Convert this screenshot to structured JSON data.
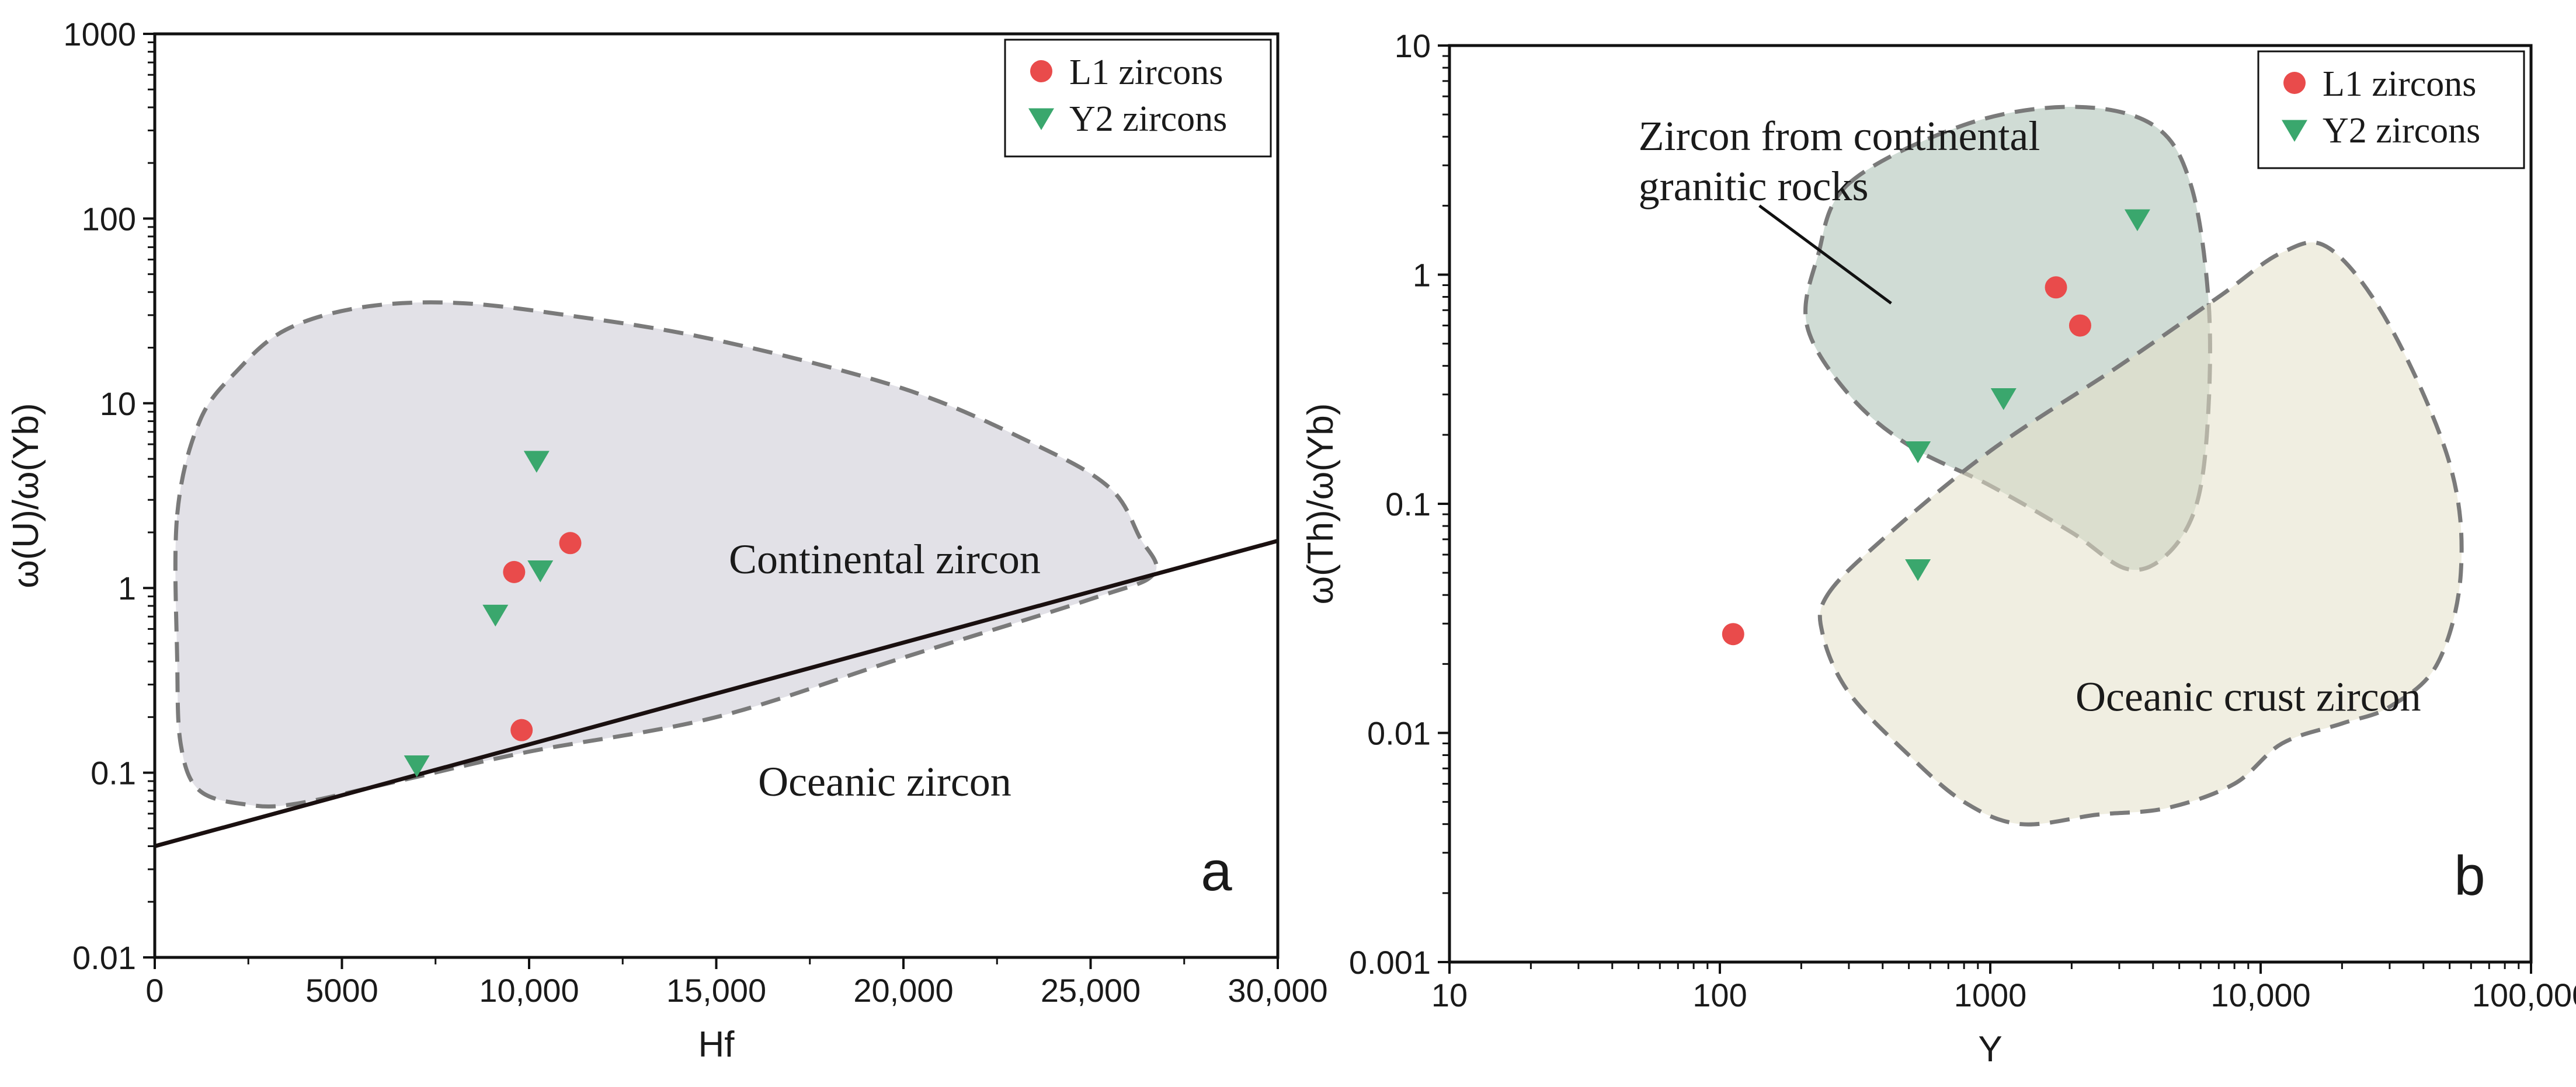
{
  "chart_data": [
    {
      "panel": "a",
      "type": "scatter",
      "panel_label": "a",
      "xlabel": "Hf",
      "ylabel": "ω(U)/ω(Yb)",
      "x_scale": "linear",
      "y_scale": "log",
      "xlim": [
        0,
        30000
      ],
      "ylim": [
        0.01,
        1000
      ],
      "x_ticks": [
        {
          "value": 0,
          "label": "0"
        },
        {
          "value": 5000,
          "label": "5000"
        },
        {
          "value": 10000,
          "label": "10,000"
        },
        {
          "value": 15000,
          "label": "15,000"
        },
        {
          "value": 20000,
          "label": "20,000"
        },
        {
          "value": 25000,
          "label": "25,000"
        },
        {
          "value": 30000,
          "label": "30,000"
        }
      ],
      "y_ticks": [
        {
          "value": 0.01,
          "label": "0.01"
        },
        {
          "value": 0.1,
          "label": "0.1"
        },
        {
          "value": 1,
          "label": "1"
        },
        {
          "value": 10,
          "label": "10"
        },
        {
          "value": 100,
          "label": "100"
        },
        {
          "value": 1000,
          "label": "1000"
        }
      ],
      "legend": {
        "position": "top-right",
        "entries": [
          "L1 zircons",
          "Y2 zircons"
        ]
      },
      "series": [
        {
          "name": "L1 zircons",
          "marker": "circle",
          "color": "#e94b4b",
          "points": [
            [
              9600,
              1.22
            ],
            [
              11100,
              1.75
            ],
            [
              9800,
              0.17
            ]
          ]
        },
        {
          "name": "Y2 zircons",
          "marker": "triangle-down",
          "color": "#3aa76d",
          "points": [
            [
              10200,
              4.9
            ],
            [
              10300,
              1.25
            ],
            [
              9100,
              0.72
            ],
            [
              7000,
              0.11
            ]
          ]
        }
      ],
      "boundary_line": {
        "from": [
          0,
          0.04
        ],
        "to": [
          30000,
          1.8
        ]
      },
      "fields": [
        {
          "label": "Continental zircon",
          "label_at": [
            19500,
            1.2
          ],
          "fill": "#e2e1e7",
          "outline": [
            [
              600,
              2.5
            ],
            [
              1200,
              8
            ],
            [
              2200,
              15
            ],
            [
              3500,
              25
            ],
            [
              5500,
              33
            ],
            [
              8000,
              35
            ],
            [
              11000,
              30
            ],
            [
              15000,
              22
            ],
            [
              20000,
              12
            ],
            [
              23500,
              6
            ],
            [
              25500,
              3.5
            ],
            [
              26300,
              1.9
            ],
            [
              26700,
              1.2
            ],
            [
              25000,
              0.87
            ],
            [
              20000,
              0.42
            ],
            [
              15000,
              0.2
            ],
            [
              10000,
              0.13
            ],
            [
              6500,
              0.09
            ],
            [
              3800,
              0.068
            ],
            [
              2500,
              0.067
            ],
            [
              1200,
              0.08
            ],
            [
              700,
              0.14
            ],
            [
              600,
              0.4
            ]
          ]
        },
        {
          "label": "Oceanic zircon",
          "label_at": [
            19500,
            0.075
          ],
          "fill": "none",
          "outline": []
        }
      ]
    },
    {
      "panel": "b",
      "type": "scatter",
      "panel_label": "b",
      "xlabel": "Y",
      "ylabel": "ω(Th)/ω(Yb)",
      "x_scale": "log",
      "y_scale": "log",
      "xlim": [
        10,
        100000
      ],
      "ylim": [
        0.001,
        10
      ],
      "x_ticks": [
        {
          "value": 10,
          "label": "10"
        },
        {
          "value": 100,
          "label": "100"
        },
        {
          "value": 1000,
          "label": "1000"
        },
        {
          "value": 10000,
          "label": "10,000"
        },
        {
          "value": 100000,
          "label": "100,000"
        }
      ],
      "y_ticks": [
        {
          "value": 0.001,
          "label": "0.001"
        },
        {
          "value": 0.01,
          "label": "0.01"
        },
        {
          "value": 0.1,
          "label": "0.1"
        },
        {
          "value": 1,
          "label": "1"
        },
        {
          "value": 10,
          "label": "10"
        }
      ],
      "legend": {
        "position": "top-right",
        "entries": [
          "L1 zircons",
          "Y2 zircons"
        ]
      },
      "series": [
        {
          "name": "L1 zircons",
          "marker": "circle",
          "color": "#e94b4b",
          "points": [
            [
              1750,
              0.88
            ],
            [
              2150,
              0.6
            ],
            [
              112,
              0.027
            ]
          ]
        },
        {
          "name": "Y2 zircons",
          "marker": "triangle-down",
          "color": "#3aa76d",
          "points": [
            [
              3500,
              1.75
            ],
            [
              1120,
              0.29
            ],
            [
              540,
              0.17
            ],
            [
              540,
              0.052
            ]
          ]
        }
      ],
      "fields": [
        {
          "label": "Zircon from continental granitic rocks",
          "label_lines": [
            "Zircon from continental",
            "granitic rocks"
          ],
          "label_at": [
            50,
            3.5
          ],
          "leader": {
            "from": [
              140,
              2.0
            ],
            "to": [
              430,
              0.75
            ]
          },
          "fill": "#a9bfb2",
          "opacity": 0.55,
          "outline": [
            [
              300,
              2.5
            ],
            [
              800,
              4.5
            ],
            [
              2000,
              5.4
            ],
            [
              4000,
              4.5
            ],
            [
              5500,
              2.5
            ],
            [
              6400,
              0.8
            ],
            [
              6400,
              0.25
            ],
            [
              5800,
              0.1
            ],
            [
              4500,
              0.06
            ],
            [
              3200,
              0.052
            ],
            [
              2000,
              0.075
            ],
            [
              1000,
              0.12
            ],
            [
              500,
              0.18
            ],
            [
              300,
              0.3
            ],
            [
              210,
              0.6
            ],
            [
              230,
              1.2
            ]
          ]
        },
        {
          "label": "Oceanic crust zircon",
          "label_at": [
            9000,
            0.0125
          ],
          "fill": "#e3e0c8",
          "opacity": 0.55,
          "outline": [
            [
              250,
              0.04
            ],
            [
              400,
              0.07
            ],
            [
              1000,
              0.17
            ],
            [
              3000,
              0.4
            ],
            [
              7000,
              0.8
            ],
            [
              12000,
              1.25
            ],
            [
              18000,
              1.3
            ],
            [
              30000,
              0.6
            ],
            [
              50000,
              0.15
            ],
            [
              55000,
              0.05
            ],
            [
              45000,
              0.02
            ],
            [
              30000,
              0.013
            ],
            [
              20000,
              0.011
            ],
            [
              12000,
              0.009
            ],
            [
              8000,
              0.006
            ],
            [
              4500,
              0.0047
            ],
            [
              2500,
              0.0044
            ],
            [
              1300,
              0.004
            ],
            [
              800,
              0.005
            ],
            [
              500,
              0.008
            ],
            [
              300,
              0.015
            ],
            [
              240,
              0.027
            ]
          ]
        }
      ]
    }
  ]
}
